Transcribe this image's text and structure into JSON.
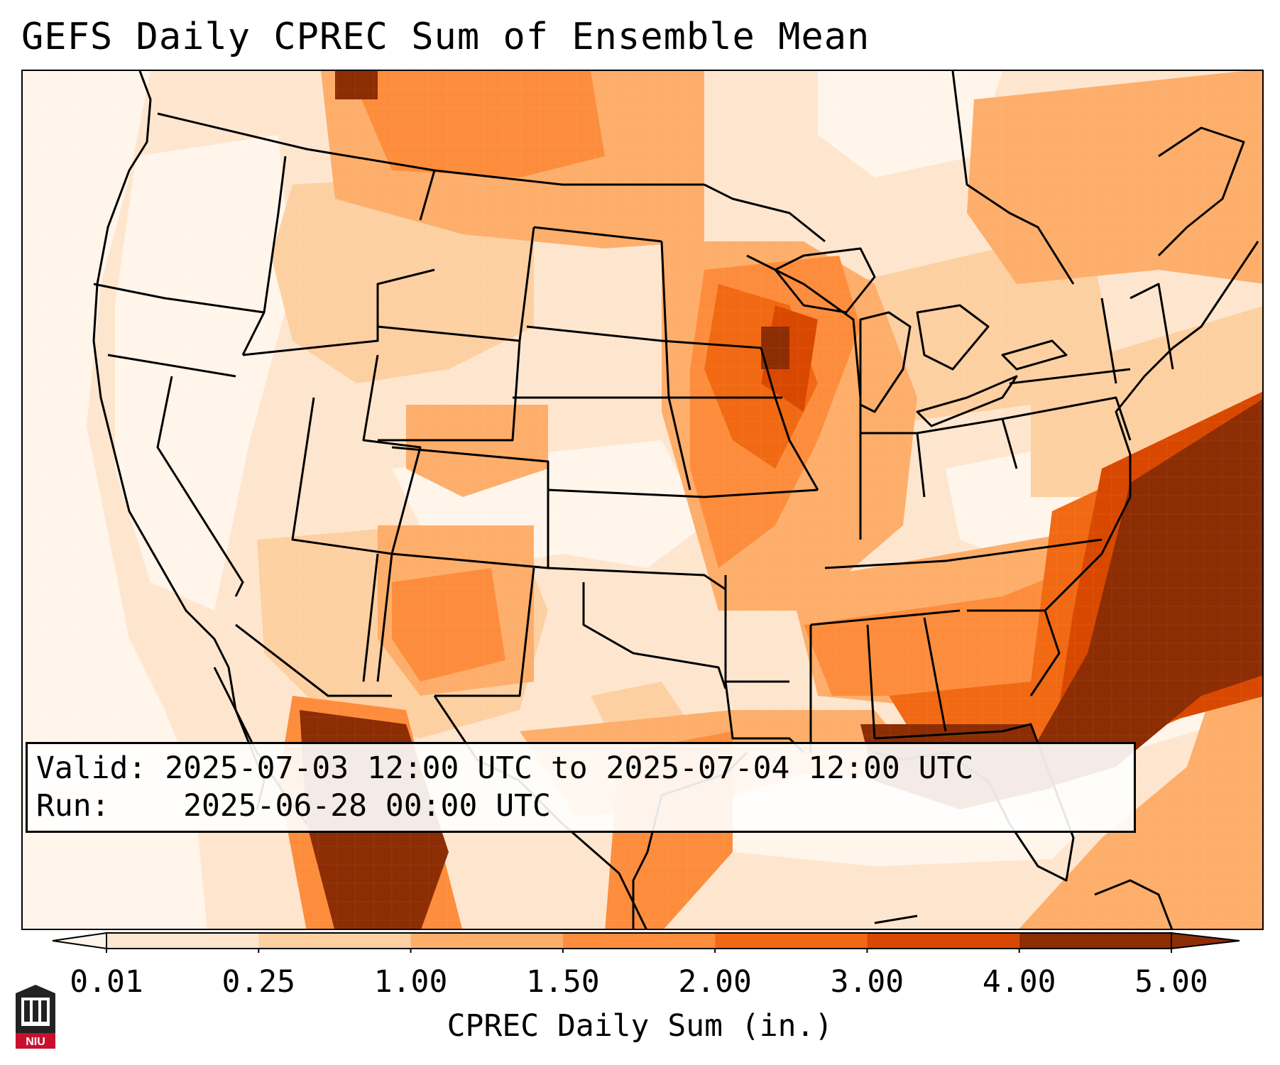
{
  "title": "GEFS Daily CPREC Sum of Ensemble Mean",
  "info": {
    "valid_label": "Valid:",
    "valid_value": "2025-07-03 12:00 UTC to 2025-07-04 12:00 UTC",
    "run_label": "Run:",
    "run_value": "2025-06-28 00:00 UTC"
  },
  "colorbar": {
    "label": "CPREC Daily Sum (in.)",
    "ticks": [
      "0.01",
      "0.25",
      "1.00",
      "1.50",
      "2.00",
      "3.00",
      "4.00",
      "5.00"
    ],
    "colors": [
      "#fff5eb",
      "#fee6ce",
      "#fdd0a2",
      "#fdae6b",
      "#fd8d3c",
      "#f16913",
      "#d94801",
      "#8c2d04"
    ]
  },
  "logo": {
    "text": "NIU",
    "color": "#c8102e"
  },
  "icons": {
    "logo": "niu-logo-icon"
  }
}
